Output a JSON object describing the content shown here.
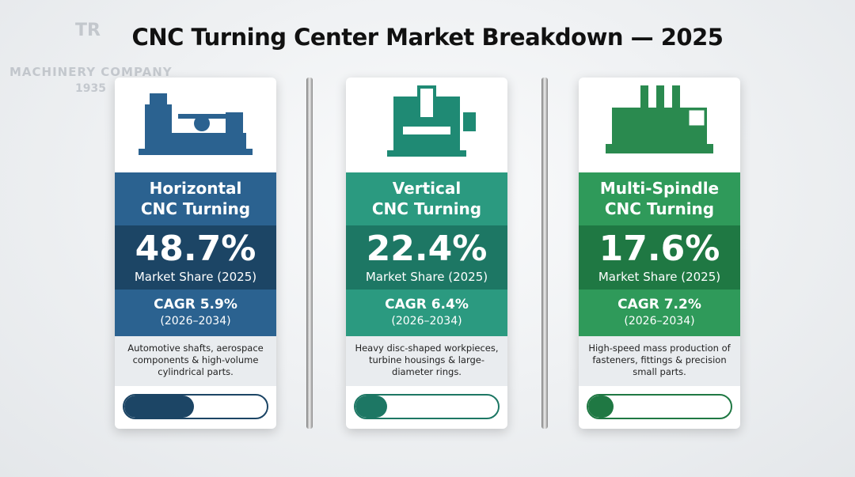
{
  "header": {
    "title": "CNC Turning Center Market Breakdown — 2025"
  },
  "watermark": {
    "logo": "TR",
    "company": "MACHINERY COMPANY",
    "year": "1935"
  },
  "cards": [
    {
      "name": [
        "Horizontal",
        "CNC Turning"
      ],
      "share": {
        "value": 48.7,
        "label": "48.7%"
      },
      "share_label": "Market Share (2025)",
      "cagr": "CAGR 5.9%",
      "period": "(2026–2034)",
      "description": "Automotive shafts, aerospace components & high-volume cylindrical parts."
    },
    {
      "name": [
        "Vertical",
        "CNC Turning"
      ],
      "share": {
        "value": 22.4,
        "label": "22.4%"
      },
      "share_label": "Market Share (2025)",
      "cagr": "CAGR 6.4%",
      "period": "(2026–2034)",
      "description": "Heavy disc-shaped workpieces, turbine housings & large-diameter rings."
    },
    {
      "name": [
        "Multi-Spindle",
        "CNC Turning"
      ],
      "share": {
        "value": 17.6,
        "label": "17.6%"
      },
      "share_label": "Market Share (2025)",
      "cagr": "CAGR 7.2%",
      "period": "(2026–2034)",
      "description": "High-speed mass production of fasteners, fittings & precision small parts."
    }
  ]
}
